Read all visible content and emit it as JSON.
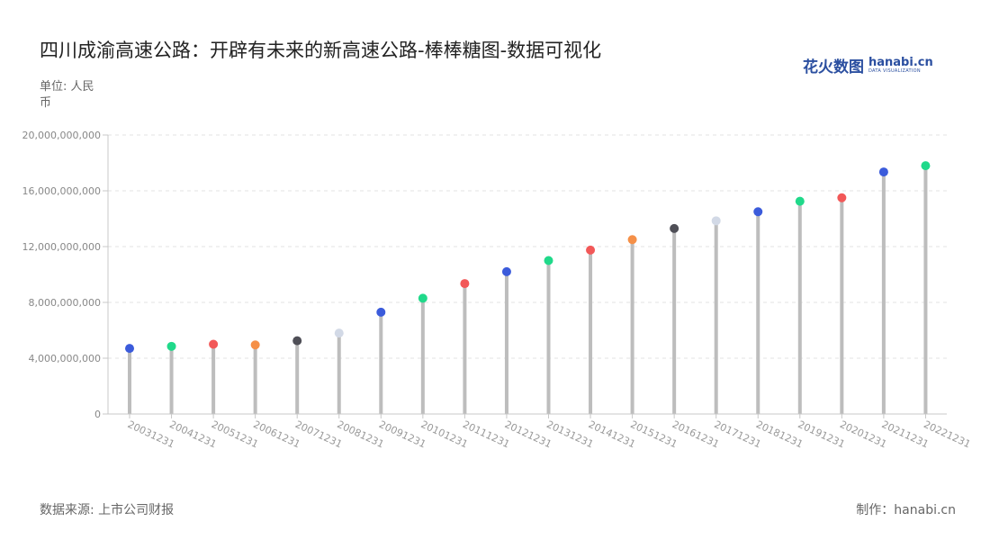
{
  "header": {
    "title": "四川成渝高速公路：开辟有未来的新高速公路-棒棒糖图-数据可视化",
    "unit": "单位: 人民币"
  },
  "logo": {
    "cn": "花火数图",
    "en": "hanabi.cn",
    "sub": "DATA VISUALIZATION"
  },
  "footer": {
    "source": "数据来源: 上市公司财报",
    "maker": "制作：hanabi.cn"
  },
  "colors": {
    "stick": "#bdbdbd",
    "grid": "#e3e3e3",
    "axis": "#c8c8c8",
    "dot_palette": [
      "#3b5bdb",
      "#20d98a",
      "#f25858",
      "#f59048",
      "#4f4f57",
      "#d2d9e6"
    ]
  },
  "chart_data": {
    "type": "lollipop",
    "categories": [
      "20031231",
      "20041231",
      "20051231",
      "20061231",
      "20071231",
      "20081231",
      "20091231",
      "20101231",
      "20111231",
      "20121231",
      "20131231",
      "20141231",
      "20151231",
      "20161231",
      "20171231",
      "20181231",
      "20191231",
      "20201231",
      "20211231",
      "20221231"
    ],
    "values": [
      4700000000,
      4850000000,
      5000000000,
      4950000000,
      5250000000,
      5800000000,
      7300000000,
      8300000000,
      9350000000,
      10200000000,
      11000000000,
      11750000000,
      12500000000,
      13300000000,
      13850000000,
      14500000000,
      15250000000,
      15500000000,
      17350000000,
      17800000000
    ],
    "dot_colors": [
      "#3b5bdb",
      "#20d98a",
      "#f25858",
      "#f59048",
      "#4f4f57",
      "#d2d9e6",
      "#3b5bdb",
      "#20d98a",
      "#f25858",
      "#3b5bdb",
      "#20d98a",
      "#f25858",
      "#f59048",
      "#4f4f57",
      "#d2d9e6",
      "#3b5bdb",
      "#20d98a",
      "#f25858",
      "#3b5bdb",
      "#20d98a"
    ],
    "yticks": [
      0,
      4000000000,
      8000000000,
      12000000000,
      16000000000,
      20000000000
    ],
    "ytick_labels": [
      "0",
      "4,000,000,000",
      "8,000,000,000",
      "12,000,000,000",
      "16,000,000,000",
      "20,000,000,000"
    ],
    "ylim": [
      0,
      20000000000
    ],
    "grid": true,
    "legend": "none"
  }
}
